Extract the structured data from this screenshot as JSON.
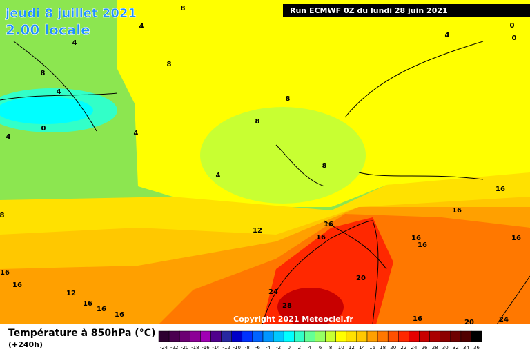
{
  "header": {
    "date": "jeudi 8 juillet 2021",
    "time": "2.00 locale",
    "run": "Run ECMWF 0Z du lundi 28 juin 2021"
  },
  "map": {
    "copyright": "Copyright 2021 Meteociel.fr",
    "contour_labels": [
      8,
      4,
      4,
      8,
      8,
      4,
      0,
      4,
      4,
      8,
      8,
      8,
      4,
      8,
      12,
      16,
      16,
      16,
      16,
      16,
      16,
      16,
      16,
      16,
      12,
      16,
      16,
      16,
      24,
      20,
      28,
      16,
      20,
      24,
      4,
      0,
      0
    ]
  },
  "legend": {
    "title": "Température à 850hPa (°C)",
    "lead": "(+240h)",
    "ticks": [
      -24,
      -22,
      -20,
      -18,
      -16,
      -14,
      -12,
      -10,
      -8,
      -6,
      -4,
      -2,
      0,
      2,
      4,
      6,
      8,
      10,
      12,
      14,
      16,
      18,
      20,
      22,
      24,
      26,
      28,
      30,
      32,
      34,
      36
    ],
    "colors": [
      "#2d0030",
      "#4b0050",
      "#6c0073",
      "#8c0096",
      "#a000b4",
      "#50008c",
      "#2828a0",
      "#0000c8",
      "#0032ff",
      "#0064ff",
      "#0096ff",
      "#00c8ff",
      "#00ffff",
      "#32ffc8",
      "#64ff96",
      "#96ff64",
      "#c8ff32",
      "#ffff00",
      "#ffe100",
      "#ffc800",
      "#ffa000",
      "#ff7800",
      "#ff5000",
      "#ff2800",
      "#e60000",
      "#c80000",
      "#aa0000",
      "#8c0000",
      "#6e0000",
      "#500000",
      "#000000"
    ]
  }
}
